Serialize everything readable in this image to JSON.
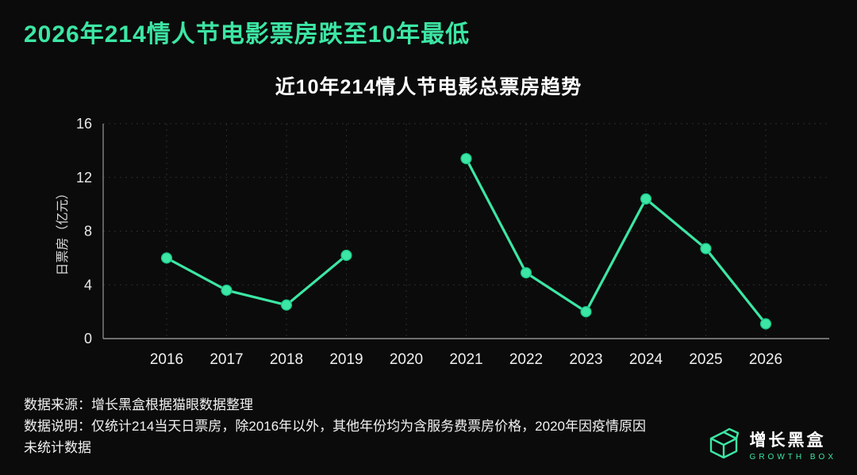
{
  "colors": {
    "accent": "#3ce6a4",
    "background": "#0b0b0b",
    "axis": "#8f8f8f",
    "grid": "#2c2c2c",
    "text": "#f2f2f2"
  },
  "header": {
    "title": "2026年214情人节电影票房跌至10年最低"
  },
  "chart_data": {
    "type": "line",
    "title": "近10年214情人节电影总票房趋势",
    "ylabel": "日票房（亿元）",
    "xlabel": "",
    "categories": [
      "2016",
      "2017",
      "2018",
      "2019",
      "2020",
      "2021",
      "2022",
      "2023",
      "2024",
      "2025",
      "2026"
    ],
    "series": [
      {
        "name": "日票房",
        "values": [
          6.0,
          3.6,
          2.5,
          6.2,
          null,
          13.4,
          4.9,
          2.0,
          10.4,
          6.7,
          1.1
        ]
      }
    ],
    "ylim": [
      0,
      16
    ],
    "yticks": [
      0,
      4,
      8,
      12,
      16
    ],
    "grid": true,
    "legend": "none",
    "line_color": "#3ce6a4"
  },
  "footer": {
    "source": "数据来源：增长黑盒根据猫眼数据整理",
    "note": "数据说明：仅统计214当天日票房，除2016年以外，其他年份均为含服务费票房价格，2020年因疫情原因未统计数据"
  },
  "logo": {
    "name": "增长黑盒",
    "subtitle": "GROWTH BOX",
    "icon": "open-box-icon"
  }
}
